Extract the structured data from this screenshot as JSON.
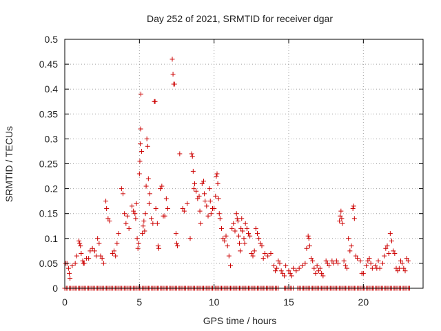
{
  "chart_data": {
    "type": "scatter",
    "title": "Day 252 of 2021, SRMTID for receiver dgar",
    "xlabel": "GPS time / hours",
    "ylabel": "SRMTID / TECUs",
    "xlim": [
      0,
      24
    ],
    "ylim": [
      0,
      0.5
    ],
    "grid": true,
    "marker": "plus",
    "series_color": "#cc0000",
    "x_ticks": [
      {
        "v": 0,
        "label": "0"
      },
      {
        "v": 5,
        "label": "5"
      },
      {
        "v": 10,
        "label": "10"
      },
      {
        "v": 15,
        "label": "15"
      },
      {
        "v": 20,
        "label": "20"
      }
    ],
    "y_ticks": [
      {
        "v": 0,
        "label": "0"
      },
      {
        "v": 0.05,
        "label": "0.05"
      },
      {
        "v": 0.1,
        "label": "0.1"
      },
      {
        "v": 0.15,
        "label": "0.15"
      },
      {
        "v": 0.2,
        "label": "0.2"
      },
      {
        "v": 0.25,
        "label": "0.25"
      },
      {
        "v": 0.3,
        "label": "0.3"
      },
      {
        "v": 0.35,
        "label": "0.35"
      },
      {
        "v": 0.4,
        "label": "0.4"
      },
      {
        "v": 0.45,
        "label": "0.45"
      },
      {
        "v": 0.5,
        "label": "0.5"
      }
    ],
    "points": [
      [
        0.05,
        0.05
      ],
      [
        0.15,
        0.05
      ],
      [
        0.25,
        0.04
      ],
      [
        0.3,
        0.03
      ],
      [
        0.35,
        0.02
      ],
      [
        0.5,
        0.045
      ],
      [
        0.7,
        0.05
      ],
      [
        0.8,
        0.065
      ],
      [
        0.95,
        0.095
      ],
      [
        1.0,
        0.09
      ],
      [
        1.05,
        0.085
      ],
      [
        1.1,
        0.07
      ],
      [
        1.2,
        0.055
      ],
      [
        1.25,
        0.05
      ],
      [
        1.3,
        0.05
      ],
      [
        1.45,
        0.06
      ],
      [
        1.6,
        0.06
      ],
      [
        1.7,
        0.075
      ],
      [
        1.85,
        0.08
      ],
      [
        2.0,
        0.075
      ],
      [
        2.1,
        0.065
      ],
      [
        2.2,
        0.1
      ],
      [
        2.3,
        0.09
      ],
      [
        2.4,
        0.065
      ],
      [
        2.5,
        0.06
      ],
      [
        2.6,
        0.05
      ],
      [
        2.75,
        0.175
      ],
      [
        2.8,
        0.16
      ],
      [
        2.9,
        0.14
      ],
      [
        3.0,
        0.135
      ],
      [
        3.2,
        0.07
      ],
      [
        3.3,
        0.075
      ],
      [
        3.4,
        0.065
      ],
      [
        3.5,
        0.09
      ],
      [
        3.6,
        0.11
      ],
      [
        3.8,
        0.2
      ],
      [
        3.9,
        0.19
      ],
      [
        4.0,
        0.15
      ],
      [
        4.1,
        0.13
      ],
      [
        4.2,
        0.145
      ],
      [
        4.3,
        0.12
      ],
      [
        4.5,
        0.165
      ],
      [
        4.6,
        0.155
      ],
      [
        4.7,
        0.15
      ],
      [
        4.75,
        0.14
      ],
      [
        4.8,
        0.17
      ],
      [
        4.85,
        0.1
      ],
      [
        4.9,
        0.08
      ],
      [
        4.95,
        0.09
      ],
      [
        5.0,
        0.23
      ],
      [
        5.03,
        0.255
      ],
      [
        5.06,
        0.29
      ],
      [
        5.08,
        0.32
      ],
      [
        5.1,
        0.39
      ],
      [
        5.15,
        0.275
      ],
      [
        5.2,
        0.11
      ],
      [
        5.25,
        0.125
      ],
      [
        5.3,
        0.135
      ],
      [
        5.35,
        0.115
      ],
      [
        5.4,
        0.15
      ],
      [
        5.45,
        0.205
      ],
      [
        5.5,
        0.3
      ],
      [
        5.55,
        0.285
      ],
      [
        5.6,
        0.22
      ],
      [
        5.65,
        0.17
      ],
      [
        5.7,
        0.19
      ],
      [
        5.8,
        0.14
      ],
      [
        5.9,
        0.13
      ],
      [
        6.0,
        0.375
      ],
      [
        6.05,
        0.375
      ],
      [
        6.1,
        0.16
      ],
      [
        6.2,
        0.13
      ],
      [
        6.25,
        0.085
      ],
      [
        6.3,
        0.08
      ],
      [
        6.4,
        0.2
      ],
      [
        6.5,
        0.205
      ],
      [
        6.6,
        0.145
      ],
      [
        6.7,
        0.145
      ],
      [
        6.8,
        0.18
      ],
      [
        6.9,
        0.16
      ],
      [
        7.2,
        0.46
      ],
      [
        7.25,
        0.43
      ],
      [
        7.3,
        0.41
      ],
      [
        7.35,
        0.41
      ],
      [
        7.45,
        0.11
      ],
      [
        7.5,
        0.09
      ],
      [
        7.55,
        0.085
      ],
      [
        7.7,
        0.27
      ],
      [
        7.9,
        0.16
      ],
      [
        8.0,
        0.155
      ],
      [
        8.2,
        0.17
      ],
      [
        8.4,
        0.1
      ],
      [
        8.5,
        0.27
      ],
      [
        8.55,
        0.265
      ],
      [
        8.6,
        0.235
      ],
      [
        8.65,
        0.2
      ],
      [
        8.7,
        0.21
      ],
      [
        8.8,
        0.195
      ],
      [
        8.9,
        0.18
      ],
      [
        9.0,
        0.185
      ],
      [
        9.05,
        0.155
      ],
      [
        9.1,
        0.13
      ],
      [
        9.2,
        0.21
      ],
      [
        9.3,
        0.215
      ],
      [
        9.35,
        0.19
      ],
      [
        9.4,
        0.175
      ],
      [
        9.5,
        0.165
      ],
      [
        9.6,
        0.145
      ],
      [
        9.7,
        0.2
      ],
      [
        9.75,
        0.175
      ],
      [
        9.8,
        0.15
      ],
      [
        9.9,
        0.16
      ],
      [
        10.0,
        0.16
      ],
      [
        10.1,
        0.185
      ],
      [
        10.15,
        0.225
      ],
      [
        10.2,
        0.23
      ],
      [
        10.25,
        0.21
      ],
      [
        10.3,
        0.18
      ],
      [
        10.35,
        0.15
      ],
      [
        10.4,
        0.14
      ],
      [
        10.5,
        0.12
      ],
      [
        10.6,
        0.1
      ],
      [
        10.7,
        0.095
      ],
      [
        10.8,
        0.105
      ],
      [
        10.9,
        0.085
      ],
      [
        11.0,
        0.065
      ],
      [
        11.1,
        0.045
      ],
      [
        11.2,
        0.12
      ],
      [
        11.3,
        0.13
      ],
      [
        11.4,
        0.115
      ],
      [
        11.5,
        0.15
      ],
      [
        11.55,
        0.14
      ],
      [
        11.6,
        0.135
      ],
      [
        11.65,
        0.105
      ],
      [
        11.7,
        0.09
      ],
      [
        11.75,
        0.075
      ],
      [
        11.8,
        0.12
      ],
      [
        11.85,
        0.14
      ],
      [
        11.9,
        0.115
      ],
      [
        12.0,
        0.1
      ],
      [
        12.05,
        0.09
      ],
      [
        12.1,
        0.13
      ],
      [
        12.2,
        0.12
      ],
      [
        12.3,
        0.11
      ],
      [
        12.4,
        0.105
      ],
      [
        12.5,
        0.07
      ],
      [
        12.6,
        0.065
      ],
      [
        12.7,
        0.075
      ],
      [
        12.8,
        0.12
      ],
      [
        12.9,
        0.11
      ],
      [
        13.0,
        0.1
      ],
      [
        13.1,
        0.09
      ],
      [
        13.2,
        0.085
      ],
      [
        13.3,
        0.06
      ],
      [
        13.4,
        0.07
      ],
      [
        13.6,
        0.065
      ],
      [
        13.8,
        0.07
      ],
      [
        14.0,
        0.045
      ],
      [
        14.1,
        0.035
      ],
      [
        14.2,
        0.04
      ],
      [
        14.3,
        0.055
      ],
      [
        14.4,
        0.05
      ],
      [
        14.5,
        0.035
      ],
      [
        14.6,
        0.03
      ],
      [
        14.7,
        0.025
      ],
      [
        14.8,
        0.045
      ],
      [
        15.0,
        0.035
      ],
      [
        15.1,
        0.03
      ],
      [
        15.2,
        0.025
      ],
      [
        15.3,
        0.04
      ],
      [
        15.5,
        0.035
      ],
      [
        15.7,
        0.04
      ],
      [
        15.9,
        0.045
      ],
      [
        16.1,
        0.05
      ],
      [
        16.2,
        0.08
      ],
      [
        16.3,
        0.105
      ],
      [
        16.35,
        0.1
      ],
      [
        16.4,
        0.085
      ],
      [
        16.5,
        0.06
      ],
      [
        16.6,
        0.055
      ],
      [
        16.7,
        0.04
      ],
      [
        16.8,
        0.03
      ],
      [
        16.9,
        0.045
      ],
      [
        17.0,
        0.035
      ],
      [
        17.1,
        0.04
      ],
      [
        17.2,
        0.03
      ],
      [
        17.3,
        0.025
      ],
      [
        17.5,
        0.055
      ],
      [
        17.6,
        0.05
      ],
      [
        17.7,
        0.045
      ],
      [
        17.9,
        0.055
      ],
      [
        18.0,
        0.05
      ],
      [
        18.2,
        0.055
      ],
      [
        18.3,
        0.05
      ],
      [
        18.4,
        0.135
      ],
      [
        18.45,
        0.145
      ],
      [
        18.5,
        0.155
      ],
      [
        18.55,
        0.14
      ],
      [
        18.6,
        0.13
      ],
      [
        18.7,
        0.055
      ],
      [
        18.8,
        0.045
      ],
      [
        18.9,
        0.04
      ],
      [
        19.0,
        0.1
      ],
      [
        19.1,
        0.075
      ],
      [
        19.2,
        0.085
      ],
      [
        19.3,
        0.16
      ],
      [
        19.35,
        0.165
      ],
      [
        19.4,
        0.14
      ],
      [
        19.5,
        0.065
      ],
      [
        19.6,
        0.06
      ],
      [
        19.8,
        0.055
      ],
      [
        19.9,
        0.03
      ],
      [
        20.0,
        0.03
      ],
      [
        20.2,
        0.045
      ],
      [
        20.3,
        0.055
      ],
      [
        20.4,
        0.06
      ],
      [
        20.5,
        0.05
      ],
      [
        20.6,
        0.04
      ],
      [
        20.8,
        0.045
      ],
      [
        20.9,
        0.04
      ],
      [
        21.0,
        0.055
      ],
      [
        21.1,
        0.04
      ],
      [
        21.3,
        0.05
      ],
      [
        21.4,
        0.065
      ],
      [
        21.5,
        0.08
      ],
      [
        21.6,
        0.085
      ],
      [
        21.7,
        0.07
      ],
      [
        21.8,
        0.11
      ],
      [
        21.9,
        0.095
      ],
      [
        22.0,
        0.075
      ],
      [
        22.1,
        0.07
      ],
      [
        22.2,
        0.04
      ],
      [
        22.3,
        0.035
      ],
      [
        22.4,
        0.04
      ],
      [
        22.5,
        0.055
      ],
      [
        22.6,
        0.05
      ],
      [
        22.7,
        0.04
      ],
      [
        22.8,
        0.035
      ],
      [
        22.9,
        0.06
      ],
      [
        23.0,
        0.055
      ]
    ],
    "zero_baseline": {
      "y": 0,
      "x_start": 0,
      "x_end": 23.1,
      "step": 0.1,
      "gaps": [
        [
          14.3,
          14.6
        ],
        [
          15.3,
          15.5
        ]
      ]
    }
  }
}
